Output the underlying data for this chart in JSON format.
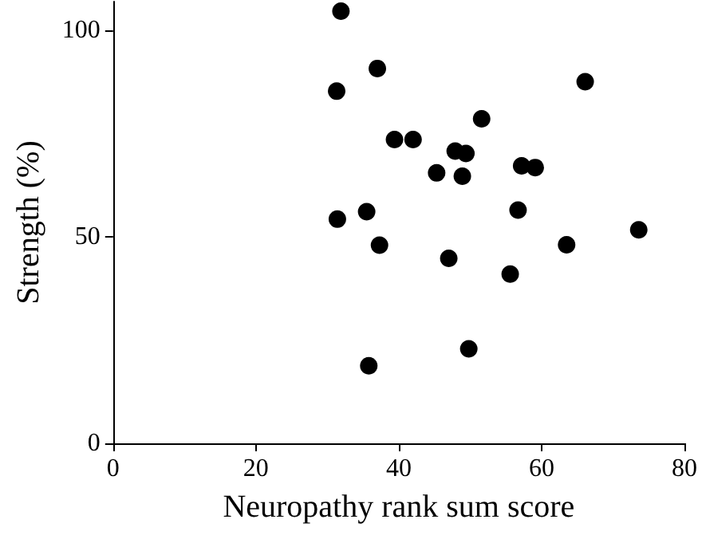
{
  "chart_data": {
    "type": "scatter",
    "xlabel": "Neuropathy rank sum score",
    "ylabel": "Strength (%)",
    "x": [
      31.9,
      37.0,
      31.3,
      51.6,
      39.4,
      42.0,
      47.9,
      49.4,
      45.3,
      48.9,
      31.4,
      35.5,
      37.3,
      47.0,
      49.8,
      35.8,
      55.6,
      66.1,
      57.2,
      59.1,
      56.7,
      73.6,
      63.5
    ],
    "values": [
      104.7,
      90.8,
      85.3,
      78.6,
      73.6,
      73.6,
      70.8,
      70.2,
      65.5,
      64.7,
      54.3,
      56.1,
      48.0,
      44.8,
      22.9,
      18.8,
      41.0,
      87.6,
      67.2,
      66.8,
      56.5,
      51.7,
      48.1
    ],
    "color": "#000000",
    "marker": "circle",
    "xlim": [
      0,
      80
    ],
    "xticks": [
      0,
      20,
      40,
      60,
      80
    ],
    "ylim": [
      0,
      107
    ],
    "yticks": [
      0,
      50,
      100
    ],
    "grid": false
  }
}
